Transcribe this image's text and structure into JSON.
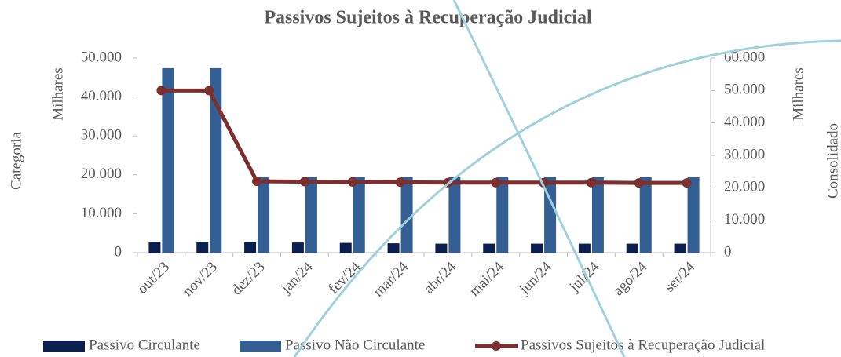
{
  "chart_data": {
    "type": "bar",
    "title": "Passivos Sujeitos à Recuperação Judicial",
    "y_title": "Categoria",
    "y_unit_label": "Milhares",
    "y2_title": "Consolidado",
    "y2_unit_label": "Milhares",
    "categories": [
      "out/23",
      "nov/23",
      "dez/23",
      "jan/24",
      "fev/24",
      "mar/24",
      "abr/24",
      "mai/24",
      "jun/24",
      "jul/24",
      "ago/24",
      "set/24"
    ],
    "series": [
      {
        "name": "Passivo Circulante",
        "color": "#0b1f4f",
        "values": [
          2800,
          2800,
          2700,
          2600,
          2500,
          2400,
          2300,
          2300,
          2300,
          2300,
          2300,
          2300
        ]
      },
      {
        "name": "Passivo Não Circulante",
        "color": "#345f95",
        "values": [
          47400,
          47400,
          19400,
          19400,
          19400,
          19400,
          19400,
          19400,
          19400,
          19400,
          19400,
          19400
        ]
      },
      {
        "name": "Passivos Sujeitos à Recuperação Judicial",
        "color": "#7b2f2f",
        "type": "line",
        "axis": "y2",
        "values": [
          50000,
          50000,
          22000,
          21900,
          21800,
          21700,
          21600,
          21600,
          21600,
          21600,
          21500,
          21500
        ]
      }
    ],
    "ylim": [
      0,
      50000
    ],
    "yticks": [
      0,
      {
        "value": 10000,
        "label": "10.000"
      },
      {
        "value": 20000,
        "label": "20.000"
      },
      {
        "value": 30000,
        "label": "30.000"
      },
      {
        "value": 40000,
        "label": "40.000"
      },
      {
        "value": 50000,
        "label": "50.000"
      }
    ],
    "y2lim": [
      0,
      60000
    ],
    "y2ticks": [
      0,
      {
        "value": 10000,
        "label": "10.000"
      },
      {
        "value": 20000,
        "label": "20.000"
      },
      {
        "value": 30000,
        "label": "30.000"
      },
      {
        "value": 40000,
        "label": "40.000"
      },
      {
        "value": 50000,
        "label": "50.000"
      },
      {
        "value": 60000,
        "label": "60.000"
      }
    ],
    "legend": "bottom"
  }
}
